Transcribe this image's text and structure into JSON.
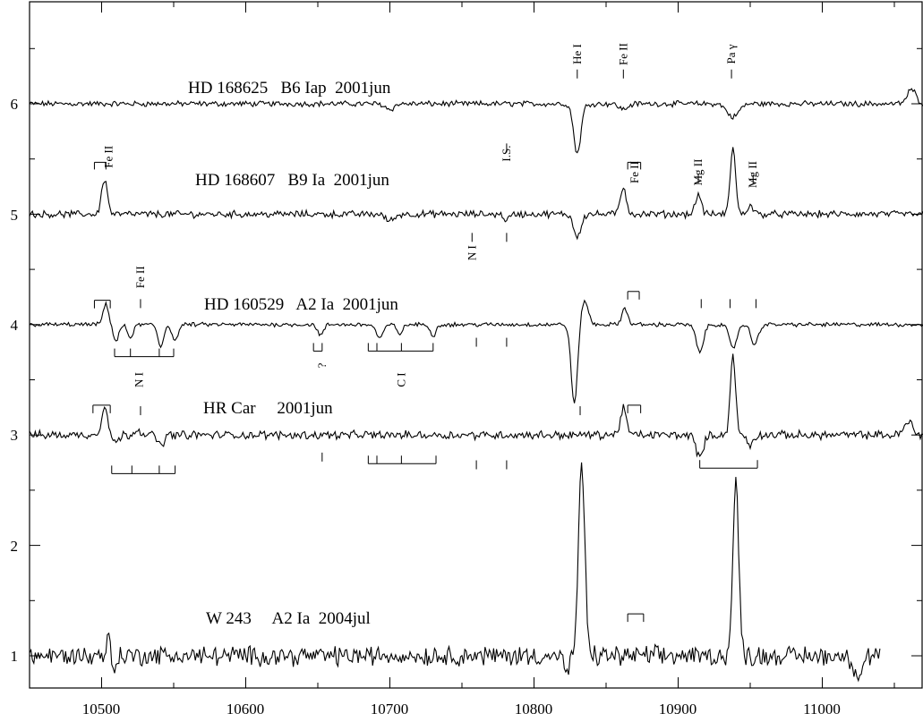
{
  "chart_data": {
    "type": "line",
    "title": "",
    "xlabel": "",
    "ylabel": "",
    "xlim": [
      10450,
      11070
    ],
    "ylim": [
      0.65,
      6.85
    ],
    "x_ticks": [
      10500,
      10600,
      10700,
      10800,
      10900,
      11000
    ],
    "y_ticks": [
      1,
      2,
      3,
      4,
      5,
      6
    ],
    "grid": false,
    "legend": "none",
    "series": [
      {
        "name": "HD 168625   B6 Iap  2001jun",
        "x_range": [
          10450,
          11070
        ],
        "baseline": 6.0,
        "noise": 0.02,
        "features": [
          {
            "x": 10830,
            "amp": -0.45,
            "w": 2.5
          },
          {
            "x": 10862,
            "amp": -0.05,
            "w": 3
          },
          {
            "x": 10938,
            "amp": -0.12,
            "w": 4
          },
          {
            "x": 10700,
            "amp": -0.05,
            "w": 3
          },
          {
            "x": 11062,
            "amp": 0.13,
            "w": 3
          }
        ]
      },
      {
        "name": "HD 168607   B9 Ia  2001jun",
        "x_range": [
          10450,
          11070
        ],
        "baseline": 5.0,
        "noise": 0.025,
        "features": [
          {
            "x": 10502,
            "amp": 0.32,
            "w": 2
          },
          {
            "x": 10830,
            "amp": -0.2,
            "w": 2.5
          },
          {
            "x": 10862,
            "amp": 0.25,
            "w": 2
          },
          {
            "x": 10914,
            "amp": 0.18,
            "w": 2
          },
          {
            "x": 10938,
            "amp": 0.62,
            "w": 1.8
          },
          {
            "x": 10950,
            "amp": 0.08,
            "w": 2
          },
          {
            "x": 10700,
            "amp": -0.06,
            "w": 3
          },
          {
            "x": 10781,
            "amp": -0.05,
            "w": 2
          }
        ]
      },
      {
        "name": "HD 160529   A2 Ia  2001jun",
        "x_range": [
          10450,
          11070
        ],
        "baseline": 4.0,
        "noise": 0.015,
        "features": [
          {
            "x": 10503,
            "amp": 0.18,
            "w": 2
          },
          {
            "x": 10510,
            "amp": -0.15,
            "w": 2
          },
          {
            "x": 10520,
            "amp": -0.12,
            "w": 2
          },
          {
            "x": 10541,
            "amp": -0.2,
            "w": 2
          },
          {
            "x": 10551,
            "amp": -0.15,
            "w": 2
          },
          {
            "x": 10652,
            "amp": -0.1,
            "w": 2
          },
          {
            "x": 10693,
            "amp": -0.12,
            "w": 2.5
          },
          {
            "x": 10707,
            "amp": -0.08,
            "w": 2
          },
          {
            "x": 10730,
            "amp": -0.1,
            "w": 2
          },
          {
            "x": 10828,
            "amp": -0.72,
            "w": 2.2
          },
          {
            "x": 10835,
            "amp": 0.22,
            "w": 2.5
          },
          {
            "x": 10863,
            "amp": 0.15,
            "w": 2
          },
          {
            "x": 10915,
            "amp": -0.25,
            "w": 2.5
          },
          {
            "x": 10938,
            "amp": -0.22,
            "w": 2.5
          },
          {
            "x": 10953,
            "amp": -0.18,
            "w": 2.5
          }
        ]
      },
      {
        "name": "HR Car     2001jun",
        "x_range": [
          10450,
          11070
        ],
        "baseline": 3.0,
        "noise": 0.03,
        "features": [
          {
            "x": 10502,
            "amp": 0.27,
            "w": 2
          },
          {
            "x": 10510,
            "amp": -0.07,
            "w": 2
          },
          {
            "x": 10525,
            "amp": 0.06,
            "w": 2
          },
          {
            "x": 10541,
            "amp": -0.1,
            "w": 2
          },
          {
            "x": 10862,
            "amp": 0.25,
            "w": 2
          },
          {
            "x": 10915,
            "amp": -0.2,
            "w": 2.5
          },
          {
            "x": 10938,
            "amp": 0.72,
            "w": 1.8
          },
          {
            "x": 10950,
            "amp": -0.1,
            "w": 2
          },
          {
            "x": 11060,
            "amp": 0.12,
            "w": 3
          }
        ]
      },
      {
        "name": "W 243     A2 Ia  2004jul",
        "x_range": [
          10450,
          11040
        ],
        "baseline": 1.0,
        "noise": 0.07,
        "features": [
          {
            "x": 10505,
            "amp": 0.18,
            "w": 1.5
          },
          {
            "x": 10508,
            "amp": -0.15,
            "w": 1.5
          },
          {
            "x": 10823,
            "amp": -0.15,
            "w": 2
          },
          {
            "x": 10833,
            "amp": 1.7,
            "w": 2.2
          },
          {
            "x": 10940,
            "amp": 1.58,
            "w": 2
          },
          {
            "x": 11025,
            "amp": -0.18,
            "w": 3
          }
        ]
      }
    ],
    "line_ids": [
      {
        "text": "He I",
        "x": 10830,
        "y": 6.45,
        "rotated": true
      },
      {
        "text": "Fe II",
        "x": 10862,
        "y": 6.45,
        "rotated": true
      },
      {
        "text": "Pa γ",
        "x": 10937,
        "y": 6.45,
        "rotated": true
      },
      {
        "text": "I.S.",
        "x": 10781,
        "y": 5.55,
        "rotated": true
      },
      {
        "text": "Fe II",
        "x": 10505,
        "y": 5.52,
        "rotated": true
      },
      {
        "text": "Fe II",
        "x": 10870,
        "y": 5.38,
        "rotated": true
      },
      {
        "text": "Mg II",
        "x": 10914,
        "y": 5.38,
        "rotated": true
      },
      {
        "text": "Mg II",
        "x": 10952,
        "y": 5.36,
        "rotated": true
      },
      {
        "text": "N I",
        "x": 10757,
        "y": 4.65,
        "rotated": true
      },
      {
        "text": "Fe II",
        "x": 10527,
        "y": 4.43,
        "rotated": true
      },
      {
        "text": "?",
        "x": 10653,
        "y": 3.63,
        "rotated": true
      },
      {
        "text": "N I",
        "x": 10526,
        "y": 3.5,
        "rotated": true
      },
      {
        "text": "C I",
        "x": 10708,
        "y": 3.5,
        "rotated": true
      }
    ]
  },
  "labels": {
    "s1": "HD 168625   B6 Iap  2001jun",
    "s2": "HD 168607   B9 Ia  2001jun",
    "s3": "HD 160529   A2 Ia  2001jun",
    "s4": "HR Car     2001jun",
    "s5": "W 243     A2 Ia  2004jul",
    "x_tick_labels": [
      "10500",
      "10600",
      "10700",
      "10800",
      "10900",
      "11000"
    ],
    "y_tick_labels": [
      "1",
      "2",
      "3",
      "4",
      "5",
      "6"
    ]
  }
}
